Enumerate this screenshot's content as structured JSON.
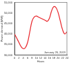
{
  "chart_data": {
    "type": "line",
    "x_label": "Hours",
    "y_label": "Power demand (MW)",
    "annotations": [
      "January 26, 2019"
    ],
    "x": [
      0,
      1,
      2,
      3,
      4,
      5,
      6,
      7,
      8,
      9,
      10,
      11,
      12,
      13,
      14,
      15,
      16,
      17,
      18,
      19,
      20,
      21,
      22,
      23,
      24
    ],
    "values": [
      40000,
      38000,
      36000,
      34000,
      33000,
      33500,
      36000,
      41000,
      46000,
      48000,
      48500,
      48000,
      47500,
      47000,
      46500,
      46000,
      47500,
      51000,
      53000,
      52500,
      50000,
      46000,
      42000,
      40000,
      41000
    ],
    "color": "#e8262b",
    "marker": "none",
    "line_style": "solid",
    "xlim": [
      0,
      24
    ],
    "xticks": [
      0,
      2,
      4,
      6,
      8,
      10,
      12,
      14,
      16,
      18,
      20,
      22,
      24
    ],
    "ylim": [
      30000,
      55000
    ],
    "yticks": [
      {
        "value": 30000,
        "label": "30,000"
      },
      {
        "value": 35000,
        "label": "35,000"
      },
      {
        "value": 40000,
        "label": "40,000"
      },
      {
        "value": 45000,
        "label": "45,000"
      },
      {
        "value": 50000,
        "label": "50,000"
      },
      {
        "value": 55000,
        "label": "55,000"
      }
    ],
    "grid": false
  }
}
